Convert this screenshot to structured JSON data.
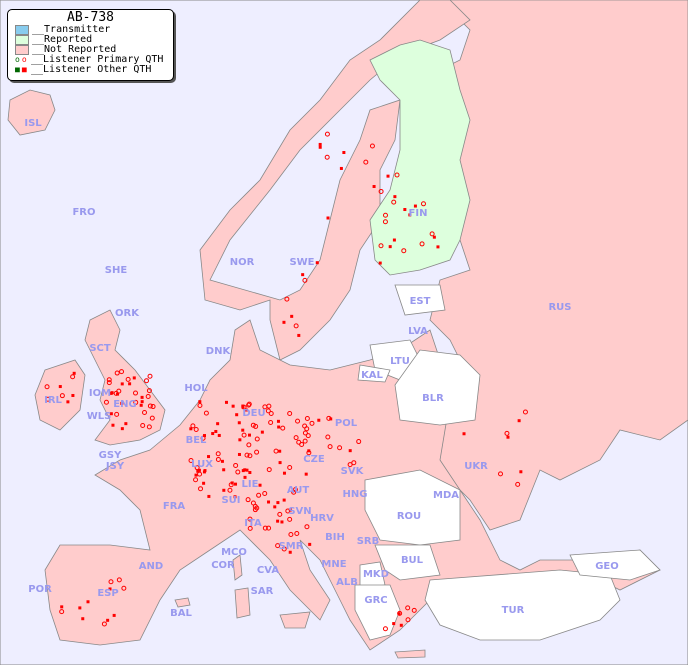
{
  "legend": {
    "title": "AB-738",
    "items": [
      {
        "label": "__Transmitter",
        "color": "#88ccee"
      },
      {
        "label": "__Reported",
        "color": "#ddffdd"
      },
      {
        "label": "__Not Reported",
        "color": "#ffcccc"
      },
      {
        "label": "__Listener Primary QTH",
        "marker": "open-circle",
        "colors": [
          "#006600",
          "#ff0000"
        ]
      },
      {
        "label": "__Listener Other QTH",
        "marker": "filled-square",
        "colors": [
          "#006600",
          "#ff0000"
        ]
      }
    ]
  },
  "colors": {
    "sea": "#eeeeff",
    "not_reported": "#ffcccc",
    "reported": "#ddffdd",
    "no_data": "#ffffff",
    "border": "#888888",
    "label": "#9999ee",
    "listener": "#ff0000"
  },
  "countries": {
    "reported": [
      "FIN"
    ],
    "no_data": [
      "EST",
      "LTU",
      "BLR",
      "KAL",
      "MDA",
      "ROU",
      "BUL",
      "TUR",
      "GEO",
      "MKD",
      "GRC"
    ],
    "labels": [
      "ISL",
      "FRO",
      "SHE",
      "ORK",
      "NOR",
      "SWE",
      "FIN",
      "EST",
      "LVA",
      "LTU",
      "RUS",
      "DNK",
      "KAL",
      "BLR",
      "HOL",
      "DEU",
      "POL",
      "IRL",
      "SCT",
      "IOM",
      "WLS",
      "ENG",
      "GSY",
      "JSY",
      "BEL",
      "LUX",
      "CZE",
      "SVK",
      "UKR",
      "FRA",
      "SUI",
      "LIE",
      "AUT",
      "HNG",
      "MDA",
      "SVN",
      "HRV",
      "ROU",
      "ITA",
      "BIH",
      "SRB",
      "MCO",
      "COR",
      "SMR",
      "AND",
      "MNE",
      "BUL",
      "GEO",
      "CVA",
      "ALB",
      "MKD",
      "POR",
      "ESP",
      "SAR",
      "BAL",
      "GRC",
      "TUR"
    ]
  }
}
